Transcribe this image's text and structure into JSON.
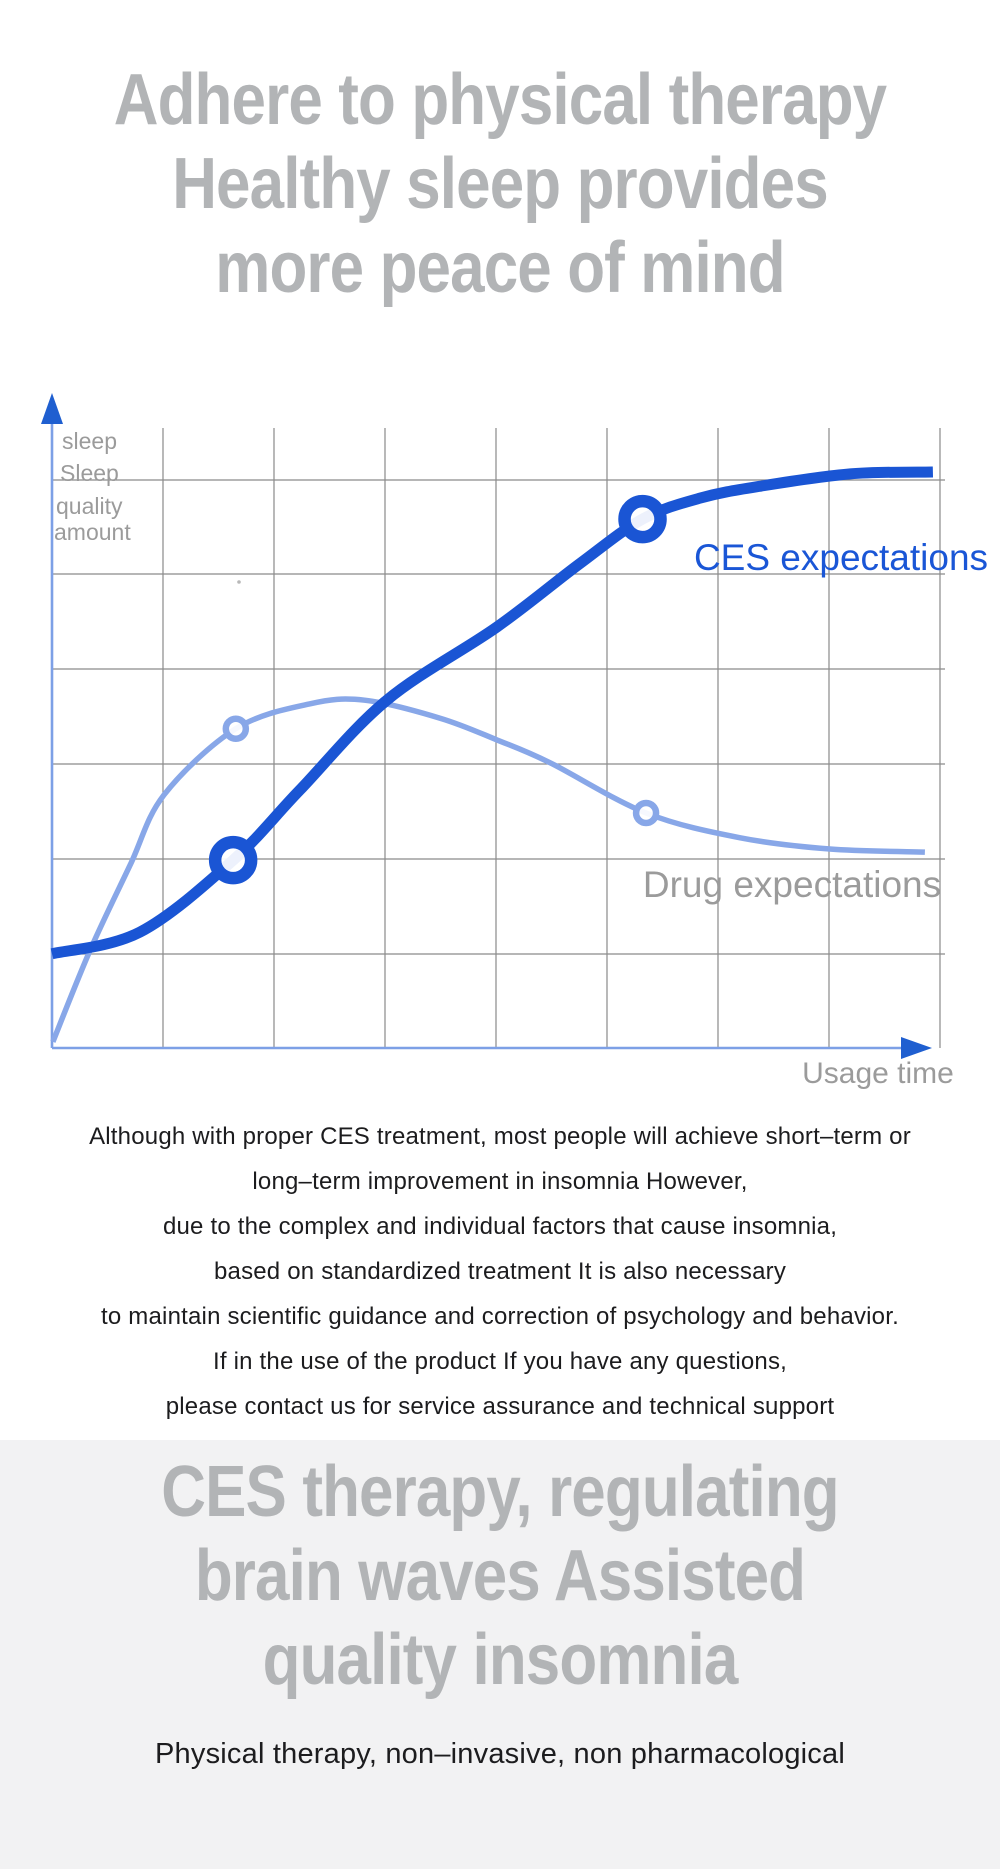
{
  "page": {
    "background": "#ffffff",
    "section_background": "#f2f2f3",
    "heading_color": "#b2b4b6",
    "body_text_color": "#1c1c1e"
  },
  "hero": {
    "lines": [
      "Adhere to physical therapy",
      "Healthy sleep provides",
      "more peace of mind"
    ]
  },
  "chart_data": {
    "type": "line",
    "title": "",
    "xlabel": "Usage time",
    "ylabel": "sleep Sleep quality amount",
    "ylabel_lines": [
      "sleep",
      "Sleep",
      "quality",
      "amount"
    ],
    "x_range": [
      0,
      1
    ],
    "y_range": [
      0,
      1
    ],
    "grid": true,
    "grid_color": "#8a8a8a",
    "axis_color": "#7da0e6",
    "arrow_color": "#1f5fd0",
    "label_gray": "#9b9b9b",
    "legend_position": "inline-annotations",
    "series": [
      {
        "name": "Drug expectations",
        "color": "#88a7e8",
        "label_color": "#9b9b9b",
        "stroke_width": 5.5,
        "marker_radius": 10,
        "marker_stroke": 6.5,
        "points": [
          [
            0.001,
            0.01
          ],
          [
            0.043,
            0.158
          ],
          [
            0.088,
            0.295
          ],
          [
            0.126,
            0.408
          ],
          [
            0.207,
            0.515
          ],
          [
            0.29,
            0.555
          ],
          [
            0.352,
            0.561
          ],
          [
            0.437,
            0.532
          ],
          [
            0.501,
            0.497
          ],
          [
            0.561,
            0.46
          ],
          [
            0.669,
            0.379
          ],
          [
            0.775,
            0.339
          ],
          [
            0.876,
            0.321
          ],
          [
            0.983,
            0.316
          ]
        ],
        "markers": [
          [
            0.207,
            0.515
          ],
          [
            0.669,
            0.379
          ]
        ]
      },
      {
        "name": "CES expectations",
        "color": "#1a55d4",
        "label_color": "#1a56d6",
        "stroke_width": 11,
        "marker_radius": 18,
        "marker_stroke": 12.5,
        "points": [
          [
            0.0,
            0.152
          ],
          [
            0.099,
            0.187
          ],
          [
            0.204,
            0.303
          ],
          [
            0.279,
            0.416
          ],
          [
            0.377,
            0.561
          ],
          [
            0.501,
            0.679
          ],
          [
            0.595,
            0.782
          ],
          [
            0.665,
            0.853
          ],
          [
            0.73,
            0.887
          ],
          [
            0.797,
            0.906
          ],
          [
            0.899,
            0.926
          ],
          [
            0.992,
            0.929
          ]
        ],
        "markers": [
          [
            0.204,
            0.303
          ],
          [
            0.665,
            0.853
          ]
        ]
      }
    ]
  },
  "body_paragraph": {
    "lines": [
      "Although with proper CES treatment, most people will achieve short–term or",
      "long–term improvement in insomnia However,",
      "due to the complex and individual factors that cause insomnia,",
      "based on standardized treatment It is also necessary",
      "to maintain scientific guidance and correction of psychology and behavior.",
      "If in the use of the product If you have any questions,",
      "please contact us for service assurance and technical support"
    ]
  },
  "section": {
    "heading_lines": [
      "CES therapy, regulating",
      "brain waves Assisted",
      "quality insomnia"
    ],
    "subtitle": "Physical therapy, non–invasive, non pharmacological"
  }
}
